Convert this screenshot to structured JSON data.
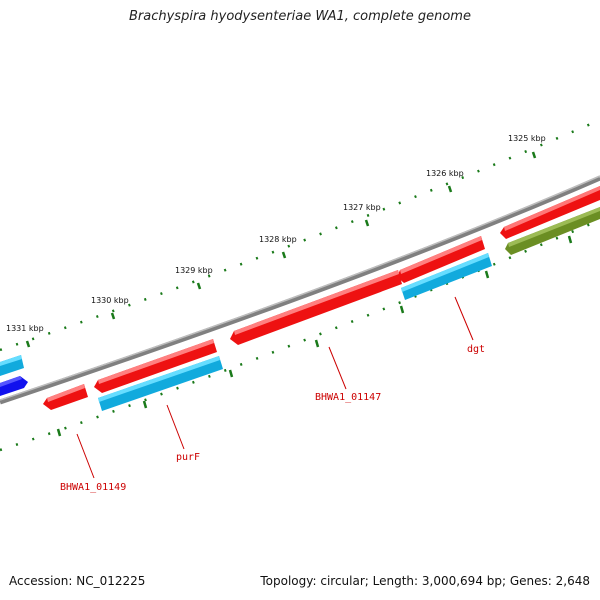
{
  "map": {
    "title": "Brachyspira hyodysenteriae WA1, complete genome",
    "accession_text": "Accession: NC_012225",
    "summary_text": "Topology: circular; Length: 3,000,694 bp; Genes: 2,648",
    "ruler_labels": [
      "1325 kbp",
      "1326 kbp",
      "1327 kbp",
      "1328 kbp",
      "1329 kbp",
      "1330 kbp",
      "1331 kbp"
    ],
    "gene_labels": [
      "dgt",
      "BHWA1_01147",
      "purF",
      "BHWA1_01149"
    ],
    "colors": {
      "backbone": "#808080",
      "gene_red": "#ee1111",
      "gene_cyan": "#11aadd",
      "gene_blue": "#1111ee",
      "gene_olive": "#6b8e23",
      "label_red": "#cc0000",
      "ruler_green": "#1a7a1a"
    }
  }
}
